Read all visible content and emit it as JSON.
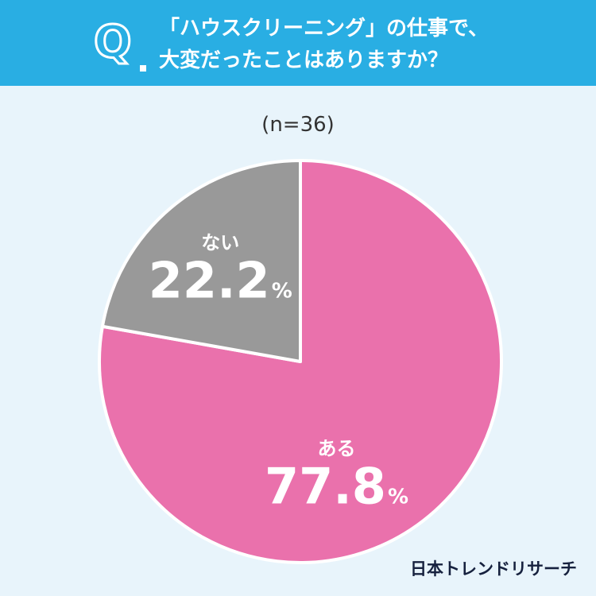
{
  "header": {
    "q_letter": "Q",
    "question_line1": "「ハウスクリーニング」の仕事で、",
    "question_line2": "大変だったことはありますか？"
  },
  "sample_size": "(n=36)",
  "brand": "日本トレンドリサーチ",
  "colors": {
    "header_bg": "#29aee3",
    "page_bg": "#e8f4fb",
    "yes": "#ea71ac",
    "no": "#999999"
  },
  "chart_data": {
    "type": "pie",
    "title": "「ハウスクリーニング」の仕事で、大変だったことはありますか？",
    "slices": [
      {
        "label": "ある",
        "value": 77.8,
        "display": "77.8",
        "unit": "%",
        "color": "#ea71ac"
      },
      {
        "label": "ない",
        "value": 22.2,
        "display": "22.2",
        "unit": "%",
        "color": "#999999"
      }
    ],
    "start_angle": "12 o'clock",
    "direction": "clockwise"
  }
}
